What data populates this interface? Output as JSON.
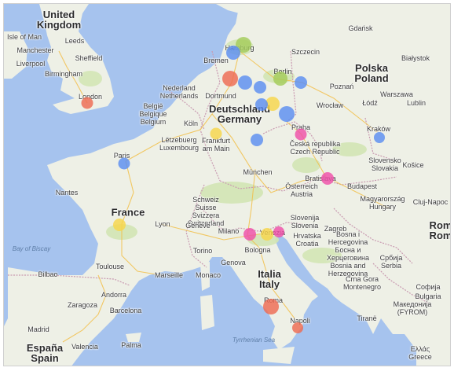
{
  "colors": {
    "sea": "#a6c3ee",
    "land": "#eef0e6",
    "green": "#d3e6b5",
    "border": "#c99ab1",
    "road": "#f2c04c"
  },
  "countries": [
    {
      "key": "uk",
      "lines": [
        "United",
        "Kingdom"
      ]
    },
    {
      "key": "france",
      "lines": [
        "France"
      ]
    },
    {
      "key": "germany",
      "lines": [
        "Deutschland",
        "Germany"
      ]
    },
    {
      "key": "poland",
      "lines": [
        "Polska",
        "Poland"
      ]
    },
    {
      "key": "italy",
      "lines": [
        "Italia",
        "Italy"
      ]
    },
    {
      "key": "spain",
      "lines": [
        "España",
        "Spain"
      ]
    },
    {
      "key": "romania",
      "lines": [
        "Rom",
        "Rom"
      ]
    }
  ],
  "cities": [
    {
      "key": "isle_of_man",
      "lines": [
        "Isle of Man"
      ]
    },
    {
      "key": "leeds",
      "lines": [
        "Leeds"
      ]
    },
    {
      "key": "manchester",
      "lines": [
        "Manchester"
      ]
    },
    {
      "key": "sheffield",
      "lines": [
        "Sheffield"
      ]
    },
    {
      "key": "liverpool",
      "lines": [
        "Liverpool"
      ]
    },
    {
      "key": "birmingham",
      "lines": [
        "Birmingham"
      ]
    },
    {
      "key": "london",
      "lines": [
        "London"
      ]
    },
    {
      "key": "hamburg",
      "lines": [
        "Hamburg"
      ]
    },
    {
      "key": "bremen",
      "lines": [
        "Bremen"
      ]
    },
    {
      "key": "szczecin",
      "lines": [
        "Szczecin"
      ]
    },
    {
      "key": "gdansk",
      "lines": [
        "Gdańsk"
      ]
    },
    {
      "key": "bialystok",
      "lines": [
        "Białystok"
      ]
    },
    {
      "key": "berlin",
      "lines": [
        "Berlin"
      ]
    },
    {
      "key": "nederland",
      "lines": [
        "Nederland",
        "Netherlands"
      ]
    },
    {
      "key": "dortmund",
      "lines": [
        "Dortmund"
      ]
    },
    {
      "key": "poznan",
      "lines": [
        "Poznań"
      ]
    },
    {
      "key": "warszawa",
      "lines": [
        "Warszawa"
      ]
    },
    {
      "key": "lodz",
      "lines": [
        "Łódź"
      ]
    },
    {
      "key": "belgie",
      "lines": [
        "België",
        "Belgique",
        "Belgium"
      ]
    },
    {
      "key": "koln",
      "lines": [
        "Köln"
      ]
    },
    {
      "key": "wroclaw",
      "lines": [
        "Wrocław"
      ]
    },
    {
      "key": "lublin",
      "lines": [
        "Lublin"
      ]
    },
    {
      "key": "praha",
      "lines": [
        "Praha"
      ]
    },
    {
      "key": "krakow",
      "lines": [
        "Kraków"
      ]
    },
    {
      "key": "letzebuerg",
      "lines": [
        "Lëtzebuerg",
        "Luxembourg"
      ]
    },
    {
      "key": "frankfurt",
      "lines": [
        "Frankfurt",
        "am Main"
      ]
    },
    {
      "key": "ceska",
      "lines": [
        "Česká republika",
        "Czech Republic"
      ]
    },
    {
      "key": "paris",
      "lines": [
        "Paris"
      ]
    },
    {
      "key": "slovensko",
      "lines": [
        "Slovensko",
        "Slovakia"
      ]
    },
    {
      "key": "kosice",
      "lines": [
        "Košice"
      ]
    },
    {
      "key": "munchen",
      "lines": [
        "München"
      ]
    },
    {
      "key": "bratislava",
      "lines": [
        "Bratislava"
      ]
    },
    {
      "key": "nantes",
      "lines": [
        "Nantes"
      ]
    },
    {
      "key": "osterreich",
      "lines": [
        "Österreich",
        "Austria"
      ]
    },
    {
      "key": "budapest",
      "lines": [
        "Budapest"
      ]
    },
    {
      "key": "magyarorszag",
      "lines": [
        "Magyarország",
        "Hungary"
      ]
    },
    {
      "key": "cluj",
      "lines": [
        "Cluj-Napoc"
      ]
    },
    {
      "key": "schweiz",
      "lines": [
        "Schweiz",
        "Suisse",
        "Svizzera",
        "Switzerland"
      ]
    },
    {
      "key": "lyon",
      "lines": [
        "Lyon"
      ]
    },
    {
      "key": "geneve",
      "lines": [
        "Genève"
      ]
    },
    {
      "key": "milano",
      "lines": [
        "Milano"
      ]
    },
    {
      "key": "venezia",
      "lines": [
        "Venezia"
      ]
    },
    {
      "key": "slovenija",
      "lines": [
        "Slovenija",
        "Slovenia"
      ]
    },
    {
      "key": "zagreb",
      "lines": [
        "Zagreb"
      ]
    },
    {
      "key": "hrvatska",
      "lines": [
        "Hrvatska",
        "Croatia"
      ]
    },
    {
      "key": "bosna",
      "lines": [
        "Bosna i",
        "Hercegovina",
        "Босна и",
        "Херцеговина",
        "Bosnia and",
        "Herzegovina"
      ]
    },
    {
      "key": "srbija",
      "lines": [
        "Србија",
        "Serbia"
      ]
    },
    {
      "key": "torino",
      "lines": [
        "Torino"
      ]
    },
    {
      "key": "genova",
      "lines": [
        "Genova"
      ]
    },
    {
      "key": "bologna",
      "lines": [
        "Bologna"
      ]
    },
    {
      "key": "toulouse",
      "lines": [
        "Toulouse"
      ]
    },
    {
      "key": "marseille",
      "lines": [
        "Marseille"
      ]
    },
    {
      "key": "bilbao",
      "lines": [
        "Bilbao"
      ]
    },
    {
      "key": "andorra",
      "lines": [
        "Andorra"
      ]
    },
    {
      "key": "monaco",
      "lines": [
        "Monaco"
      ]
    },
    {
      "key": "crna_gora",
      "lines": [
        "Crna Gora",
        "Montenegro"
      ]
    },
    {
      "key": "sofia",
      "lines": [
        "Софија"
      ]
    },
    {
      "key": "bulgaria",
      "lines": [
        "Bulgaria"
      ]
    },
    {
      "key": "zaragoza",
      "lines": [
        "Zaragoza"
      ]
    },
    {
      "key": "barcelona",
      "lines": [
        "Barcelona"
      ]
    },
    {
      "key": "roma",
      "lines": [
        "Roma"
      ]
    },
    {
      "key": "makedonija",
      "lines": [
        "Македонија",
        "(FYROM)"
      ]
    },
    {
      "key": "madrid",
      "lines": [
        "Madrid"
      ]
    },
    {
      "key": "napoli",
      "lines": [
        "Napoli"
      ]
    },
    {
      "key": "tirane",
      "lines": [
        "Tiranë"
      ]
    },
    {
      "key": "valencia",
      "lines": [
        "Valencia"
      ]
    },
    {
      "key": "palma",
      "lines": [
        "Palma"
      ]
    },
    {
      "key": "greece",
      "lines": [
        "Ελλάς",
        "Greece"
      ]
    }
  ],
  "seas": [
    {
      "key": "biscay",
      "text": "Bay of Biscay"
    },
    {
      "key": "tyrrhenian",
      "text": "Tyrrhenian Sea"
    }
  ],
  "markers": [
    {
      "name": "marker-london",
      "color": "#ee6a52"
    },
    {
      "name": "marker-hamburg-1",
      "color": "#a3cc5a"
    },
    {
      "name": "marker-hamburg-2",
      "color": "#5b8ef0"
    },
    {
      "name": "marker-bremen",
      "color": "#ee6a52"
    },
    {
      "name": "marker-hannover-1",
      "color": "#5b8ef0"
    },
    {
      "name": "marker-hannover-2",
      "color": "#5b8ef0"
    },
    {
      "name": "marker-berlin-1",
      "color": "#a3cc5a"
    },
    {
      "name": "marker-berlin-2",
      "color": "#5b8ef0"
    },
    {
      "name": "marker-leipzig",
      "color": "#f7d64a"
    },
    {
      "name": "marker-dresden",
      "color": "#5b8ef0"
    },
    {
      "name": "marker-koln",
      "color": "#5b8ef0"
    },
    {
      "name": "marker-frankfurt",
      "color": "#f7d64a"
    },
    {
      "name": "marker-nurnberg",
      "color": "#5b8ef0"
    },
    {
      "name": "marker-praha",
      "color": "#ef4fa8"
    },
    {
      "name": "marker-krakow",
      "color": "#5b8ef0"
    },
    {
      "name": "marker-paris",
      "color": "#5b8ef0"
    },
    {
      "name": "marker-bratislava",
      "color": "#ef4fa8"
    },
    {
      "name": "marker-france",
      "color": "#f7d64a"
    },
    {
      "name": "marker-milano",
      "color": "#ef4fa8"
    },
    {
      "name": "marker-venezia",
      "color": "#f7d64a"
    },
    {
      "name": "marker-adriatic",
      "color": "#ef4fa8"
    },
    {
      "name": "marker-roma",
      "color": "#ee6a52"
    },
    {
      "name": "marker-napoli",
      "color": "#ee6a52"
    }
  ]
}
